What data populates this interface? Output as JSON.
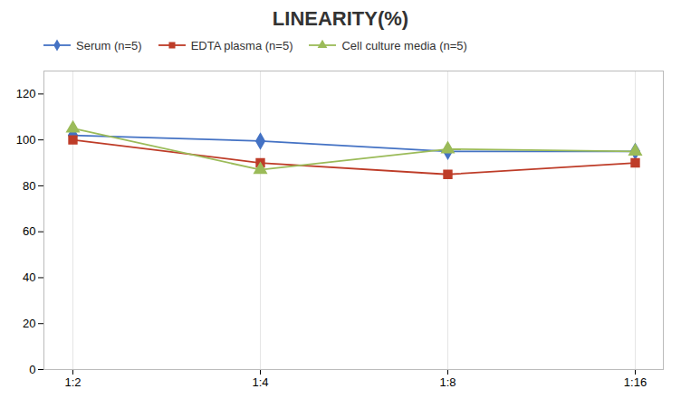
{
  "chart_data": {
    "type": "line",
    "title": "LINEARITY(%)",
    "categories": [
      "1:2",
      "1:4",
      "1:8",
      "1:16"
    ],
    "series": [
      {
        "name": "Serum (n=5)",
        "color": "#4472C4",
        "marker": "diamond",
        "values": [
          102,
          99.5,
          95,
          95
        ]
      },
      {
        "name": "EDTA plasma (n=5)",
        "color": "#BE3C28",
        "marker": "square",
        "values": [
          100,
          90,
          85,
          90
        ]
      },
      {
        "name": "Cell culture media (n=5)",
        "color": "#9BBB59",
        "marker": "triangle",
        "values": [
          105,
          87,
          96,
          95
        ]
      }
    ],
    "ylim": [
      0,
      130
    ],
    "yticks": [
      0,
      20,
      40,
      60,
      80,
      100,
      120
    ],
    "grid": "x",
    "legend": "top"
  }
}
